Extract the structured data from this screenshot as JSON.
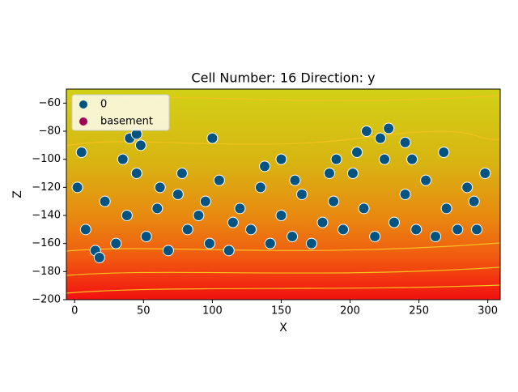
{
  "chart_data": {
    "type": "scatter",
    "title": "Cell Number: 16 Direction: y",
    "x_label": "X",
    "y_label": "Z",
    "xlim": [
      -6,
      309
    ],
    "ylim": [
      -200,
      -50
    ],
    "xticks": [
      0,
      50,
      100,
      150,
      200,
      250,
      300
    ],
    "yticks": [
      {
        "value": -200,
        "label": "−200"
      },
      {
        "value": -180,
        "label": "−180"
      },
      {
        "value": -160,
        "label": "−160"
      },
      {
        "value": -140,
        "label": "−140"
      },
      {
        "value": -120,
        "label": "−120"
      },
      {
        "value": -100,
        "label": "−100"
      },
      {
        "value": -80,
        "label": "−80"
      },
      {
        "value": -60,
        "label": "−60"
      }
    ],
    "legend": "upper left",
    "series": [
      {
        "name": "0",
        "color": "#015482",
        "x": [
          2,
          8,
          15,
          22,
          30,
          38,
          45,
          52,
          60,
          68,
          75,
          82,
          90,
          98,
          105,
          112,
          120,
          128,
          135,
          142,
          150,
          158,
          165,
          172,
          180,
          188,
          195,
          202,
          210,
          218,
          225,
          232,
          240,
          248,
          255,
          262,
          270,
          278,
          285,
          292,
          298,
          5,
          18,
          35,
          48,
          62,
          78,
          95,
          115,
          138,
          160,
          185,
          205,
          222,
          245,
          268,
          290,
          40,
          45,
          212,
          228,
          240,
          100,
          150,
          190
        ],
        "values": [
          -120,
          -150,
          -165,
          -130,
          -160,
          -140,
          -110,
          -155,
          -135,
          -165,
          -125,
          -150,
          -140,
          -160,
          -115,
          -165,
          -135,
          -150,
          -120,
          -160,
          -140,
          -155,
          -125,
          -160,
          -145,
          -130,
          -150,
          -110,
          -135,
          -155,
          -100,
          -145,
          -125,
          -150,
          -115,
          -155,
          -135,
          -150,
          -120,
          -150,
          -110,
          -95,
          -170,
          -100,
          -90,
          -120,
          -110,
          -130,
          -145,
          -105,
          -115,
          -110,
          -95,
          -85,
          -100,
          -95,
          -130,
          -85,
          -82,
          -80,
          -78,
          -88,
          -85,
          -100,
          -100
        ]
      },
      {
        "name": "basement",
        "color": "#9f0052",
        "x": [],
        "values": []
      }
    ]
  }
}
